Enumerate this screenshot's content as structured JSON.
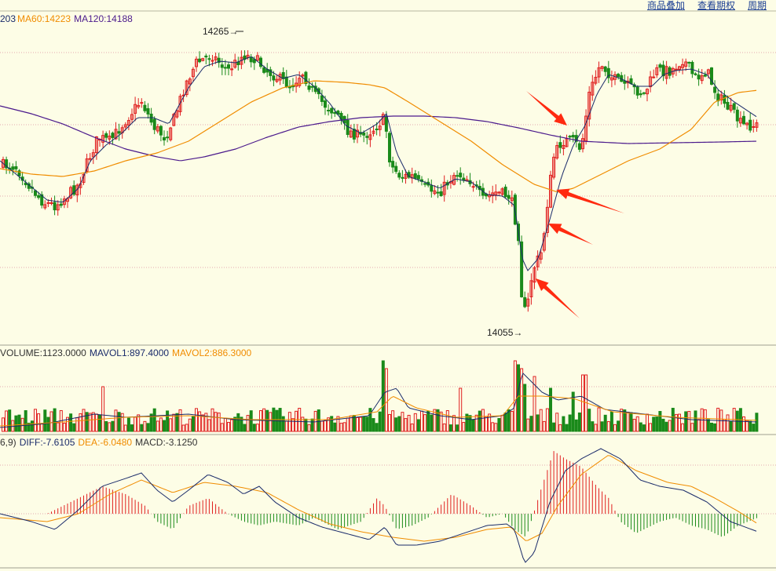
{
  "toolbar": {
    "links": [
      "商品叠加",
      "查看期权",
      "周期"
    ]
  },
  "main_legend": {
    "ma_prev": "203",
    "ma60": "MA60:14223",
    "ma120": "MA120:14188"
  },
  "volume_legend": {
    "volume": "VOLUME:1123.0000",
    "mavol1": "MAVOL1:897.4000",
    "mavol2": "MAVOL2:886.3000"
  },
  "macd_legend": {
    "params": "6,9)",
    "diff": "DIFF:-7.6105",
    "dea": "DEA:-6.0480",
    "macd": "MACD:-3.1250"
  },
  "colors": {
    "up": "#e02020",
    "down": "#1a8a1a",
    "ma_short": "#1a2b6a",
    "ma60": "#f08c00",
    "ma120": "#4b1a8c",
    "arrow": "#ff2a10",
    "grid": "#e2a9b0"
  },
  "chart_data": {
    "type": "candlestick",
    "high_label": "14265",
    "low_label": "14055",
    "price_high": 14265,
    "price_low": 14055,
    "ma60_last": 14223,
    "ma120_last": 14188,
    "volume_last": 1123.0,
    "mavol1_last": 897.4,
    "mavol2_last": 886.3,
    "diff_last": -7.6105,
    "dea_last": -6.048,
    "macd_last": -3.125
  }
}
